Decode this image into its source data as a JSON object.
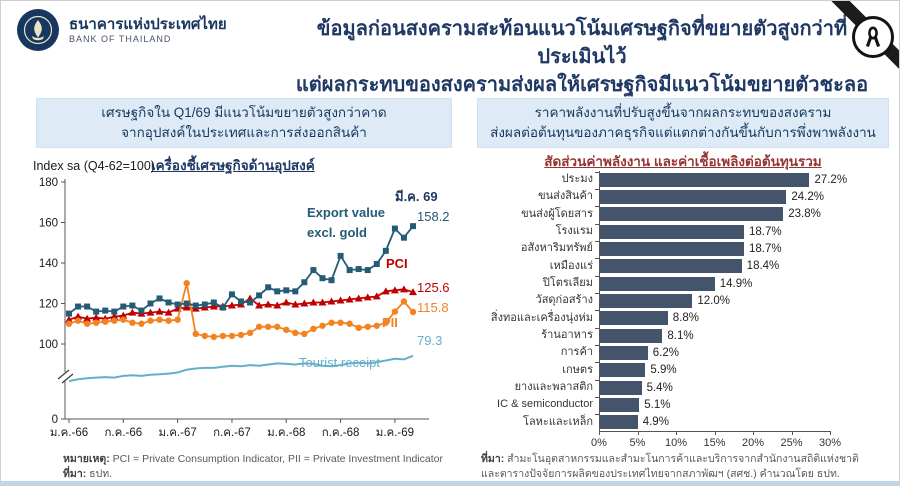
{
  "header": {
    "brand_th": "ธนาคารแห่งประเทศไทย",
    "brand_en": "BANK OF THAILAND",
    "title_line1": "ข้อมูลก่อนสงครามสะท้อนแนวโน้มเศรษฐกิจที่ขยายตัวสูงกว่าที่ประเมินไว้",
    "title_line2": "แต่ผลกระทบของสงครามส่งผลให้เศรษฐกิจมีแนวโน้มขยายตัวชะลอลง"
  },
  "left_panel": {
    "callout_line1": "เศรษฐกิจใน Q1/69 มีแนวโน้มขยายตัวสูงกว่าคาด",
    "callout_line2": "จากอุปสงค์ในประเทศและการส่งออกสินค้า",
    "axis_note": "Index sa (Q4-62=100)",
    "chart_title": "เครื่องชี้เศรษฐกิจด้านอุปสงค์",
    "note_label": "หมายเหตุ:",
    "note_text": " PCI = Private Consumption Indicator, PII = Private Investment Indicator",
    "source_label": "ที่มา:",
    "source_text": " ธปท."
  },
  "right_panel": {
    "callout_line1": "ราคาพลังงานที่ปรับสูงขึ้นจากผลกระทบของสงคราม",
    "callout_line2": "ส่งผลต่อต้นทุนของภาคธุรกิจแต่แตกต่างกันขึ้นกับการพึ่งพาพลังงาน",
    "chart_title": "สัดส่วนค่าพลังงาน และค่าเชื้อเพลิงต่อต้นทุนรวม",
    "source_label": "ที่มา:",
    "source_line1": " สำมะโนอุตสาหกรรมและสำมะโนการค้าและบริการจากสำนักงานสถิติแห่งชาติ",
    "source_line2": "และตารางปัจจัยการผลิตของประเทศไทยจากสภาพัฒฯ (สศช.) คำนวณโดย ธปท."
  },
  "chart_data": [
    {
      "type": "line",
      "title": "เครื่องชี้เศรษฐกิจด้านอุปสงค์",
      "ylabel": "Index sa (Q4-62=100)",
      "y_ticks": [
        180,
        160,
        140,
        120,
        100,
        0
      ],
      "axis_break_below": 100,
      "x_tick_labels": [
        "ม.ค.-66",
        "ก.ค.-66",
        "ม.ค.-67",
        "ก.ค.-67",
        "ม.ค.-68",
        "ก.ค.-68",
        "ม.ค.-69"
      ],
      "end_period_label": "มี.ค. 69",
      "x_months": 39,
      "series": [
        {
          "name": "Export value excl. gold",
          "label_line1": "Export value",
          "label_line2": "excl. gold",
          "color": "#245C75",
          "marker": "square",
          "end_value": "158.2",
          "values": [
            115,
            118.5,
            118.5,
            116,
            116.5,
            116,
            118.5,
            119,
            116.5,
            120,
            122.5,
            120.5,
            119.5,
            120,
            119,
            119.5,
            120.5,
            118,
            124.5,
            121,
            120.5,
            124,
            128,
            126,
            126.5,
            126,
            130.5,
            136.5,
            132.5,
            131.5,
            143.5,
            136.5,
            137,
            136.5,
            139.5,
            146,
            157,
            152.5,
            158.2
          ]
        },
        {
          "name": "PCI",
          "label_line1": "PCI",
          "label_line2": "",
          "color": "#C00000",
          "marker": "triangle",
          "end_value": "125.6",
          "values": [
            112,
            113.5,
            112.5,
            113,
            112.5,
            113.5,
            114,
            115.5,
            115,
            115.5,
            116,
            115.5,
            117.5,
            118,
            117.5,
            118,
            118.5,
            118.5,
            119,
            119.5,
            122.5,
            119,
            119.5,
            119,
            120.5,
            119.5,
            120,
            120.5,
            120.5,
            121,
            121.5,
            122,
            122.5,
            123,
            123.5,
            126,
            126.5,
            127,
            125.6
          ]
        },
        {
          "name": "PII",
          "label_line1": "PII",
          "label_line2": "",
          "color": "#F58220",
          "marker": "circle",
          "end_value": "115.8",
          "values": [
            110,
            111.5,
            110,
            110.5,
            111,
            111.5,
            112,
            110.5,
            110,
            111.5,
            112,
            111.5,
            112,
            130,
            105,
            104,
            103.5,
            104,
            104,
            104.5,
            105.5,
            108.5,
            108.5,
            108.5,
            107,
            105.5,
            105,
            107.5,
            109,
            110.5,
            110.5,
            110,
            108,
            108.5,
            109,
            110.5,
            116,
            121,
            115.8
          ]
        },
        {
          "name": "Tourist receipt",
          "label_line1": "Tourist receipt",
          "label_line2": "",
          "color": "#64AFC8",
          "marker": "none",
          "end_value": "79.3",
          "values": [
            35,
            38,
            40,
            41,
            42,
            41,
            44,
            45,
            44,
            46,
            47,
            48,
            50,
            55,
            57,
            58,
            58,
            60,
            62,
            61,
            63,
            62,
            64,
            66,
            65,
            64,
            66,
            65,
            62,
            61,
            63,
            66,
            67,
            66,
            68,
            71,
            74,
            73,
            79.3
          ]
        }
      ]
    },
    {
      "type": "bar",
      "orientation": "horizontal",
      "title": "สัดส่วนค่าพลังงาน และค่าเชื้อเพลิงต่อต้นทุนรวม",
      "categories": [
        "ประมง",
        "ขนส่งสินค้า",
        "ขนส่งผู้โดยสาร",
        "โรงแรม",
        "อสังหาริมทรัพย์",
        "เหมืองแร่",
        "ปิโตรเลียม",
        "วัสดุก่อสร้าง",
        "สิ่งทอและเครื่องนุ่งห่ม",
        "ร้านอาหาร",
        "การค้า",
        "เกษตร",
        "ยางและพลาสติก",
        "IC & semiconductor",
        "โลหะและเหล็ก"
      ],
      "values": [
        27.2,
        24.2,
        23.8,
        18.7,
        18.7,
        18.4,
        14.9,
        12.0,
        8.8,
        8.1,
        6.2,
        5.9,
        5.4,
        5.1,
        4.9
      ],
      "value_labels": [
        "27.2%",
        "24.2%",
        "23.8%",
        "18.7%",
        "18.7%",
        "18.4%",
        "14.9%",
        "12.0%",
        "8.8%",
        "8.1%",
        "6.2%",
        "5.9%",
        "5.4%",
        "5.1%",
        "4.9%"
      ],
      "xlim": [
        0,
        30
      ],
      "x_ticks": [
        "0%",
        "5%",
        "10%",
        "15%",
        "20%",
        "25%",
        "30%"
      ],
      "bar_color": "#44546A"
    }
  ]
}
